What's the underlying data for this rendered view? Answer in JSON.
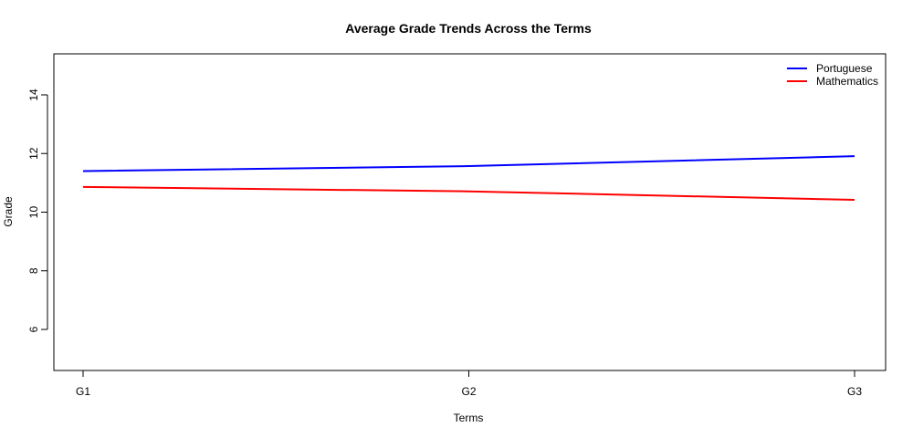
{
  "chart_data": {
    "type": "line",
    "title": "Average Grade Trends Across the Terms",
    "xlabel": "Terms",
    "ylabel": "Grade",
    "categories": [
      "G1",
      "G2",
      "G3"
    ],
    "ylim": [
      4.6,
      15.4
    ],
    "yticks": [
      6,
      8,
      10,
      12,
      14
    ],
    "legend_position": "top-right",
    "series": [
      {
        "name": "Portuguese",
        "color": "#0000ff",
        "values": [
          11.4,
          11.57,
          11.91
        ]
      },
      {
        "name": "Mathematics",
        "color": "#ff0000",
        "values": [
          10.86,
          10.71,
          10.42
        ]
      }
    ]
  }
}
